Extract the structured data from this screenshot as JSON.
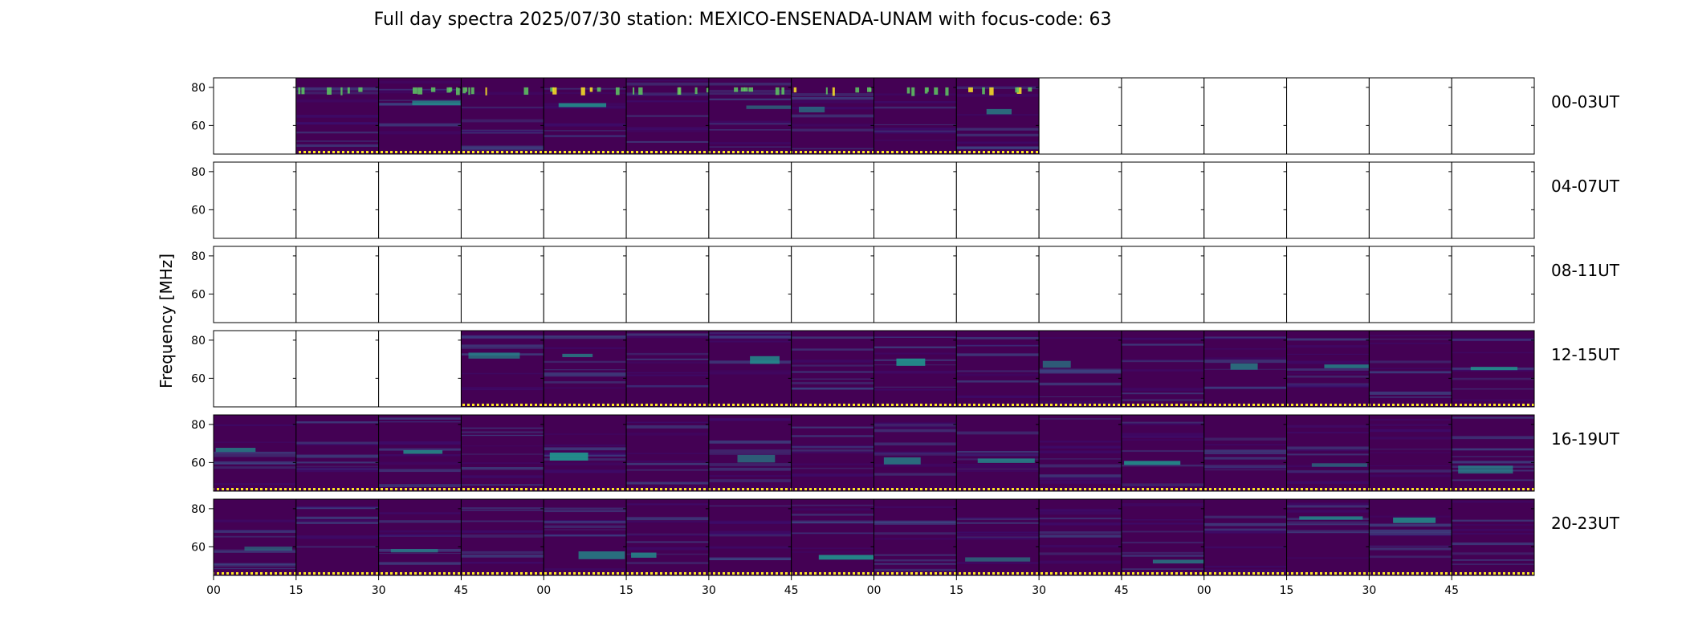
{
  "chart_data": {
    "type": "heatmap",
    "title": "Full day spectra 2025/07/30 station: MEXICO-ENSENADA-UNAM with focus-code: 63",
    "ylabel": "Frequency [MHz]",
    "xlabel": "",
    "ylim": [
      45,
      85
    ],
    "y_ticks": [
      60,
      80
    ],
    "x_ticks": [
      "00",
      "15",
      "30",
      "45",
      "00",
      "15",
      "30",
      "45",
      "00",
      "15",
      "30",
      "45",
      "00",
      "15",
      "30",
      "45"
    ],
    "colormap": "viridis",
    "rows": [
      {
        "label": "00-03UT",
        "data_present": [
          false,
          true,
          true,
          true,
          true,
          true,
          true,
          true,
          true,
          true,
          false,
          false,
          false,
          false,
          false,
          false
        ]
      },
      {
        "label": "04-07UT",
        "data_present": [
          false,
          false,
          false,
          false,
          false,
          false,
          false,
          false,
          false,
          false,
          false,
          false,
          false,
          false,
          false,
          false
        ]
      },
      {
        "label": "08-11UT",
        "data_present": [
          false,
          false,
          false,
          false,
          false,
          false,
          false,
          false,
          false,
          false,
          false,
          false,
          false,
          false,
          false,
          false
        ]
      },
      {
        "label": "12-15UT",
        "data_present": [
          false,
          false,
          false,
          true,
          true,
          true,
          true,
          true,
          true,
          true,
          true,
          true,
          true,
          true,
          true,
          true
        ]
      },
      {
        "label": "16-19UT",
        "data_present": [
          true,
          true,
          true,
          true,
          true,
          true,
          true,
          true,
          true,
          true,
          true,
          true,
          true,
          true,
          true,
          true
        ]
      },
      {
        "label": "20-23UT",
        "data_present": [
          true,
          true,
          true,
          true,
          true,
          true,
          true,
          true,
          true,
          true,
          true,
          true,
          true,
          true,
          true,
          true
        ]
      }
    ]
  },
  "colors": {
    "background": "#440154",
    "low": "#3b0f70",
    "mid": "#3b528b",
    "high": "#21918c",
    "bright": "#5ec962",
    "peak": "#fde725",
    "marker": "#fde725",
    "frame": "#000000",
    "empty": "#ffffff"
  }
}
